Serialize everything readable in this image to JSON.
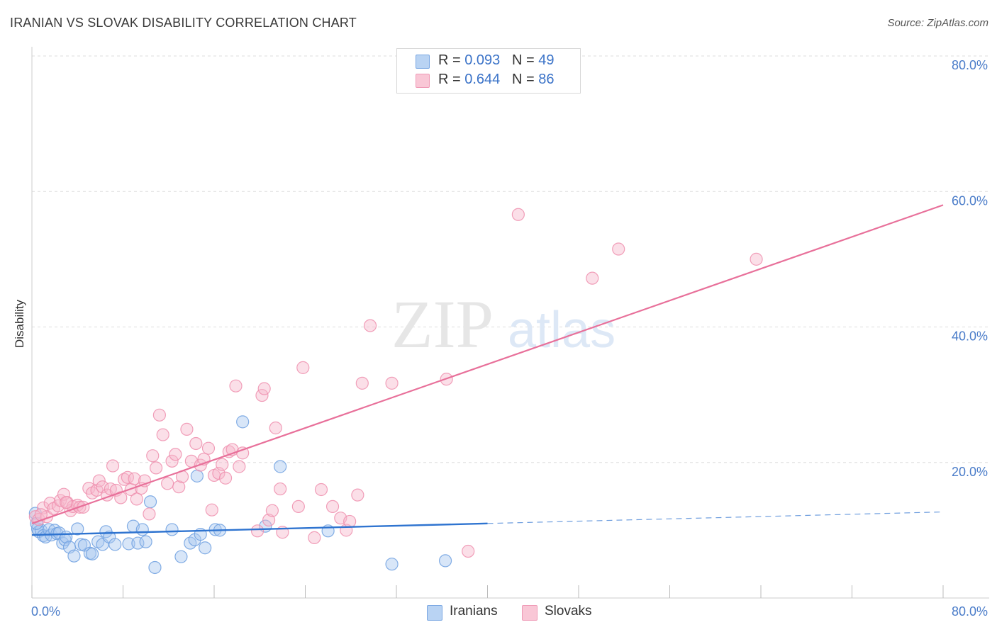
{
  "header": {
    "title": "IRANIAN VS SLOVAK DISABILITY CORRELATION CHART",
    "source": "Source: ZipAtlas.com"
  },
  "watermark": {
    "zip": "ZIP",
    "atlas": "atlas"
  },
  "legend": {
    "rows": [
      {
        "r_label": "R =",
        "r_value": "0.093",
        "n_label": "N =",
        "n_value": "49"
      },
      {
        "r_label": "R =",
        "r_value": "0.644",
        "n_label": "N =",
        "n_value": "86"
      }
    ]
  },
  "colors": {
    "iranians_fill": "#a8c8f0",
    "iranians_stroke": "#6fa0e0",
    "iranians_line": "#2f74d0",
    "slovaks_fill": "#f6b8cb",
    "slovaks_stroke": "#ef8fae",
    "slovaks_line": "#e8709a",
    "grid": "#dddddd",
    "tick_text": "#4a7cc9"
  },
  "chart_data": {
    "type": "scatter",
    "title": "IRANIAN VS SLOVAK DISABILITY CORRELATION CHART",
    "xlabel": "",
    "ylabel": "Disability",
    "xlim": [
      0,
      80
    ],
    "ylim": [
      0,
      80
    ],
    "x_tick_labels": [
      "0.0%",
      "80.0%"
    ],
    "y_tick_labels": [
      "20.0%",
      "40.0%",
      "60.0%",
      "80.0%"
    ],
    "y_ticks": [
      20,
      40,
      60,
      80
    ],
    "grid": true,
    "series": [
      {
        "name": "Iranians",
        "R": 0.093,
        "N": 49,
        "trend": {
          "x0": 0,
          "y0": 9.3,
          "x1": 40,
          "y1": 11.0,
          "dash_x1": 80,
          "dash_y1": 12.7
        },
        "points": [
          [
            0.3,
            12.5
          ],
          [
            0.5,
            10.2
          ],
          [
            0.6,
            9.8
          ],
          [
            0.8,
            10.0
          ],
          [
            1.0,
            9.2
          ],
          [
            1.2,
            9.0
          ],
          [
            1.5,
            10.1
          ],
          [
            1.7,
            9.3
          ],
          [
            2.0,
            10.0
          ],
          [
            2.2,
            9.5
          ],
          [
            2.4,
            9.6
          ],
          [
            2.7,
            8.1
          ],
          [
            2.9,
            8.6
          ],
          [
            3.0,
            9.0
          ],
          [
            3.3,
            7.5
          ],
          [
            3.7,
            6.2
          ],
          [
            4.0,
            10.2
          ],
          [
            4.3,
            7.9
          ],
          [
            4.6,
            7.8
          ],
          [
            5.1,
            6.6
          ],
          [
            5.3,
            6.5
          ],
          [
            5.8,
            8.3
          ],
          [
            6.2,
            7.9
          ],
          [
            6.5,
            9.8
          ],
          [
            6.8,
            9.0
          ],
          [
            7.3,
            7.9
          ],
          [
            8.5,
            8.0
          ],
          [
            8.9,
            10.6
          ],
          [
            9.3,
            8.1
          ],
          [
            9.7,
            10.1
          ],
          [
            10.0,
            8.3
          ],
          [
            10.4,
            14.2
          ],
          [
            10.8,
            4.5
          ],
          [
            12.3,
            10.1
          ],
          [
            13.1,
            6.1
          ],
          [
            13.9,
            8.1
          ],
          [
            14.3,
            8.6
          ],
          [
            14.5,
            18.0
          ],
          [
            14.8,
            9.4
          ],
          [
            15.2,
            7.4
          ],
          [
            16.1,
            10.1
          ],
          [
            16.5,
            10.0
          ],
          [
            18.5,
            26.0
          ],
          [
            20.5,
            10.6
          ],
          [
            21.8,
            19.4
          ],
          [
            26.0,
            9.9
          ],
          [
            31.6,
            5.0
          ],
          [
            36.3,
            5.5
          ],
          [
            0.4,
            11.0
          ]
        ]
      },
      {
        "name": "Slovaks",
        "R": 0.644,
        "N": 86,
        "trend": {
          "x0": 0,
          "y0": 11.0,
          "x1": 80,
          "y1": 58.0
        },
        "points": [
          [
            0.3,
            12.0
          ],
          [
            0.6,
            11.6
          ],
          [
            1.0,
            13.3
          ],
          [
            1.3,
            12.0
          ],
          [
            1.6,
            14.0
          ],
          [
            1.9,
            13.2
          ],
          [
            2.3,
            13.6
          ],
          [
            2.5,
            14.4
          ],
          [
            2.8,
            15.3
          ],
          [
            3.1,
            14.1
          ],
          [
            3.4,
            12.9
          ],
          [
            3.6,
            13.5
          ],
          [
            4.0,
            13.7
          ],
          [
            4.2,
            13.4
          ],
          [
            4.5,
            13.4
          ],
          [
            5.0,
            16.2
          ],
          [
            5.3,
            15.5
          ],
          [
            5.7,
            15.9
          ],
          [
            5.9,
            17.3
          ],
          [
            6.2,
            16.4
          ],
          [
            6.6,
            15.2
          ],
          [
            6.9,
            16.1
          ],
          [
            7.1,
            19.5
          ],
          [
            7.4,
            15.9
          ],
          [
            7.8,
            14.8
          ],
          [
            8.1,
            17.5
          ],
          [
            8.4,
            17.8
          ],
          [
            8.7,
            16.0
          ],
          [
            9.0,
            17.6
          ],
          [
            9.2,
            14.6
          ],
          [
            9.6,
            16.2
          ],
          [
            9.9,
            17.3
          ],
          [
            10.3,
            12.4
          ],
          [
            10.6,
            21.0
          ],
          [
            10.9,
            19.2
          ],
          [
            11.2,
            27.0
          ],
          [
            11.5,
            24.1
          ],
          [
            11.9,
            16.9
          ],
          [
            12.3,
            20.2
          ],
          [
            12.6,
            21.2
          ],
          [
            12.9,
            16.4
          ],
          [
            13.2,
            17.9
          ],
          [
            13.6,
            24.9
          ],
          [
            14.0,
            20.2
          ],
          [
            14.4,
            22.8
          ],
          [
            14.8,
            19.6
          ],
          [
            15.1,
            20.5
          ],
          [
            15.5,
            22.1
          ],
          [
            15.8,
            13.0
          ],
          [
            16.0,
            18.1
          ],
          [
            16.4,
            18.4
          ],
          [
            16.7,
            19.7
          ],
          [
            17.0,
            17.7
          ],
          [
            17.3,
            21.6
          ],
          [
            17.6,
            21.9
          ],
          [
            17.9,
            31.3
          ],
          [
            18.2,
            19.4
          ],
          [
            18.5,
            21.4
          ],
          [
            19.8,
            9.9
          ],
          [
            20.2,
            29.9
          ],
          [
            20.4,
            30.9
          ],
          [
            20.8,
            11.5
          ],
          [
            21.1,
            12.9
          ],
          [
            21.4,
            25.1
          ],
          [
            21.8,
            16.1
          ],
          [
            22.0,
            9.7
          ],
          [
            23.4,
            13.5
          ],
          [
            23.8,
            34.0
          ],
          [
            24.8,
            8.9
          ],
          [
            25.4,
            16.0
          ],
          [
            26.4,
            13.5
          ],
          [
            27.1,
            11.8
          ],
          [
            27.6,
            10.0
          ],
          [
            27.9,
            11.3
          ],
          [
            28.6,
            15.2
          ],
          [
            29.0,
            31.7
          ],
          [
            29.7,
            40.2
          ],
          [
            31.6,
            31.7
          ],
          [
            36.4,
            32.3
          ],
          [
            38.3,
            6.9
          ],
          [
            42.7,
            56.6
          ],
          [
            49.2,
            47.2
          ],
          [
            51.5,
            51.5
          ],
          [
            63.6,
            50.0
          ],
          [
            0.8,
            12.3
          ],
          [
            3.0,
            14.1
          ]
        ]
      }
    ]
  },
  "bottom_legend": {
    "iranians": "Iranians",
    "slovaks": "Slovaks"
  }
}
